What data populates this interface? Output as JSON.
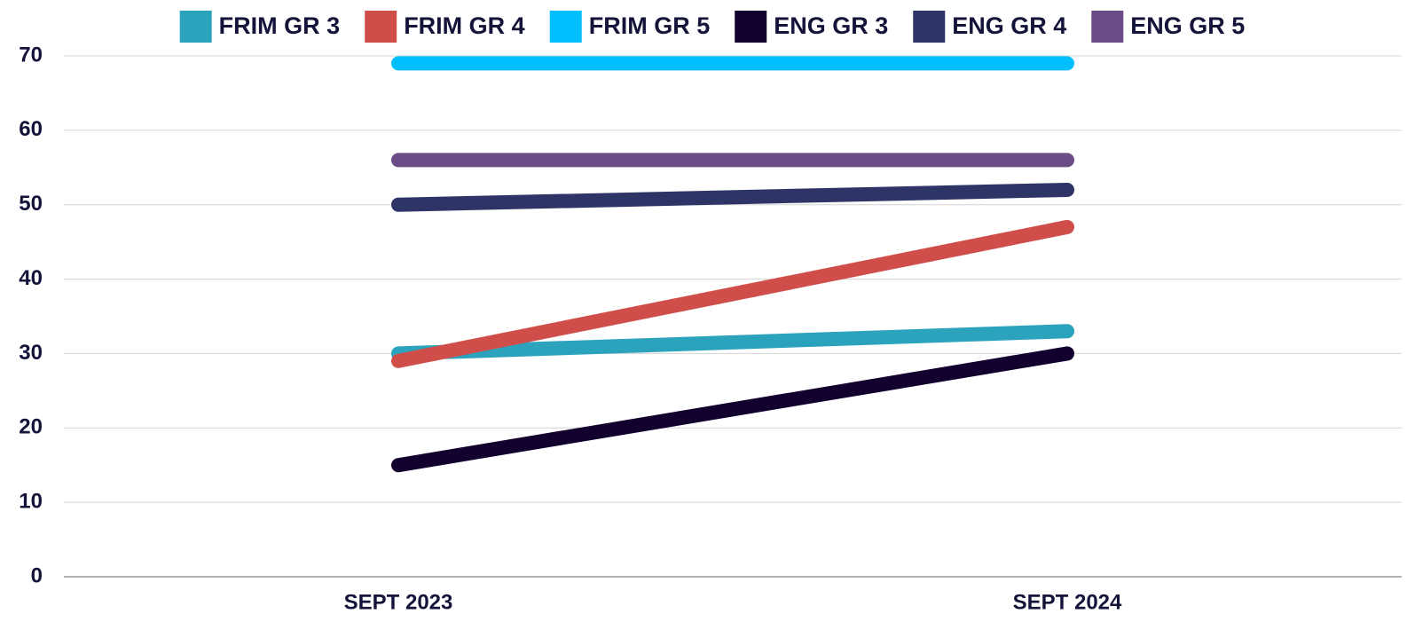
{
  "chart_data": {
    "type": "line",
    "categories": [
      "SEPT 2023",
      "SEPT 2024"
    ],
    "series": [
      {
        "name": "FRIM GR 3",
        "color": "#2ba3bd",
        "values": [
          30,
          33
        ]
      },
      {
        "name": "FRIM GR 4",
        "color": "#d04e4a",
        "values": [
          29,
          47
        ]
      },
      {
        "name": "FRIM GR 5",
        "color": "#00bfff",
        "values": [
          69,
          69
        ]
      },
      {
        "name": "ENG GR 3",
        "color": "#12002e",
        "values": [
          15,
          30
        ]
      },
      {
        "name": "ENG GR 4",
        "color": "#2e3566",
        "values": [
          50,
          52
        ]
      },
      {
        "name": "ENG GR 5",
        "color": "#6c4c87",
        "values": [
          56,
          56
        ]
      }
    ],
    "ylim": [
      0,
      70
    ],
    "yticks": [
      0,
      10,
      20,
      30,
      40,
      50,
      60,
      70
    ],
    "grid": true,
    "legend": "top"
  }
}
